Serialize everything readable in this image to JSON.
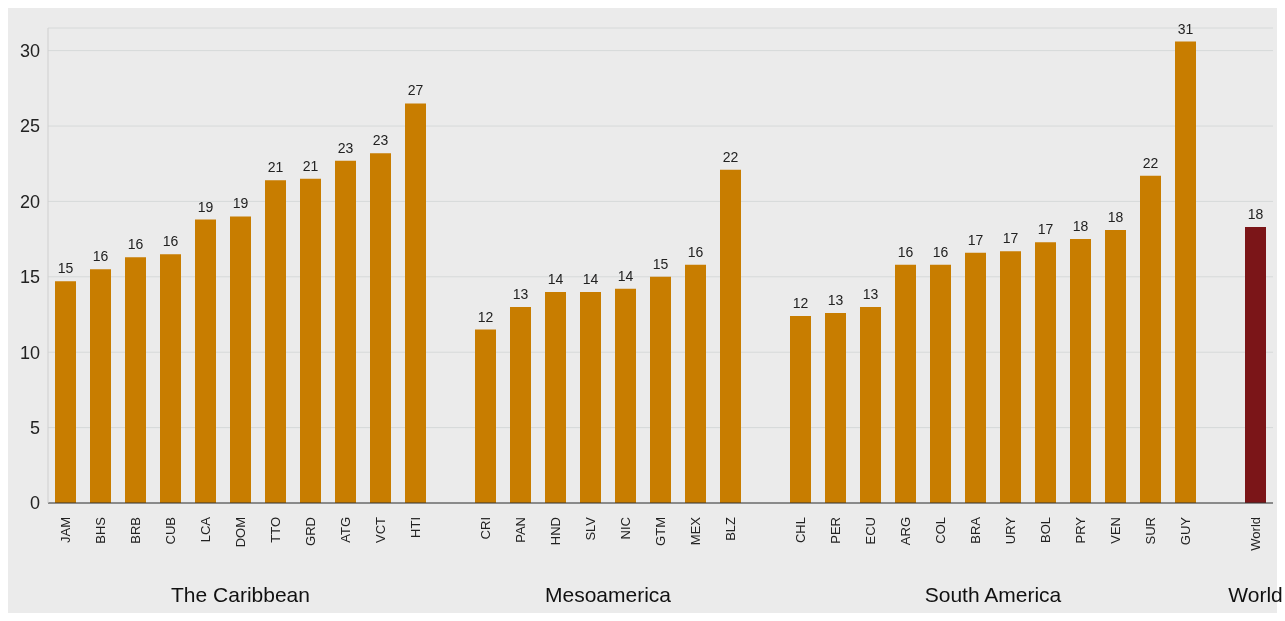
{
  "chart_data": {
    "type": "bar",
    "categories": [
      "JAM",
      "BHS",
      "BRB",
      "CUB",
      "LCA",
      "DOM",
      "TTO",
      "GRD",
      "ATG",
      "VCT",
      "HTI",
      null,
      "CRI",
      "PAN",
      "HND",
      "SLV",
      "NIC",
      "GTM",
      "MEX",
      "BLZ",
      null,
      "CHL",
      "PER",
      "ECU",
      "ARG",
      "COL",
      "BRA",
      "URY",
      "BOL",
      "PRY",
      "VEN",
      "SUR",
      "GUY",
      null,
      "World"
    ],
    "values": [
      14.7,
      15.5,
      16.3,
      16.5,
      18.8,
      19.0,
      21.4,
      21.5,
      22.7,
      23.2,
      26.5,
      null,
      11.5,
      13.0,
      14.0,
      14.0,
      14.2,
      15.0,
      15.8,
      22.1,
      null,
      12.4,
      12.6,
      13.0,
      15.8,
      15.8,
      16.6,
      16.7,
      17.3,
      17.5,
      18.1,
      21.7,
      30.6,
      null,
      18.3
    ],
    "value_labels": [
      "15",
      "16",
      "16",
      "16",
      "19",
      "19",
      "21",
      "21",
      "23",
      "23",
      "27",
      null,
      "12",
      "13",
      "14",
      "14",
      "14",
      "15",
      "16",
      "22",
      null,
      "12",
      "13",
      "13",
      "16",
      "16",
      "17",
      "17",
      "17",
      "18",
      "18",
      "22",
      "31",
      null,
      "18"
    ],
    "colors": [
      "#c87d00",
      "#c87d00",
      "#c87d00",
      "#c87d00",
      "#c87d00",
      "#c87d00",
      "#c87d00",
      "#c87d00",
      "#c87d00",
      "#c87d00",
      "#c87d00",
      null,
      "#c87d00",
      "#c87d00",
      "#c87d00",
      "#c87d00",
      "#c87d00",
      "#c87d00",
      "#c87d00",
      "#c87d00",
      null,
      "#c87d00",
      "#c87d00",
      "#c87d00",
      "#c87d00",
      "#c87d00",
      "#c87d00",
      "#c87d00",
      "#c87d00",
      "#c87d00",
      "#c87d00",
      "#c87d00",
      "#c87d00",
      null,
      "#7b1518"
    ],
    "annotations": [
      "The Caribbean",
      "Mesoamerica",
      "South America",
      "World"
    ],
    "ylim": [
      0,
      31.5
    ],
    "yticks": [
      0,
      5,
      10,
      15,
      20,
      25,
      30
    ],
    "grid": "y"
  }
}
